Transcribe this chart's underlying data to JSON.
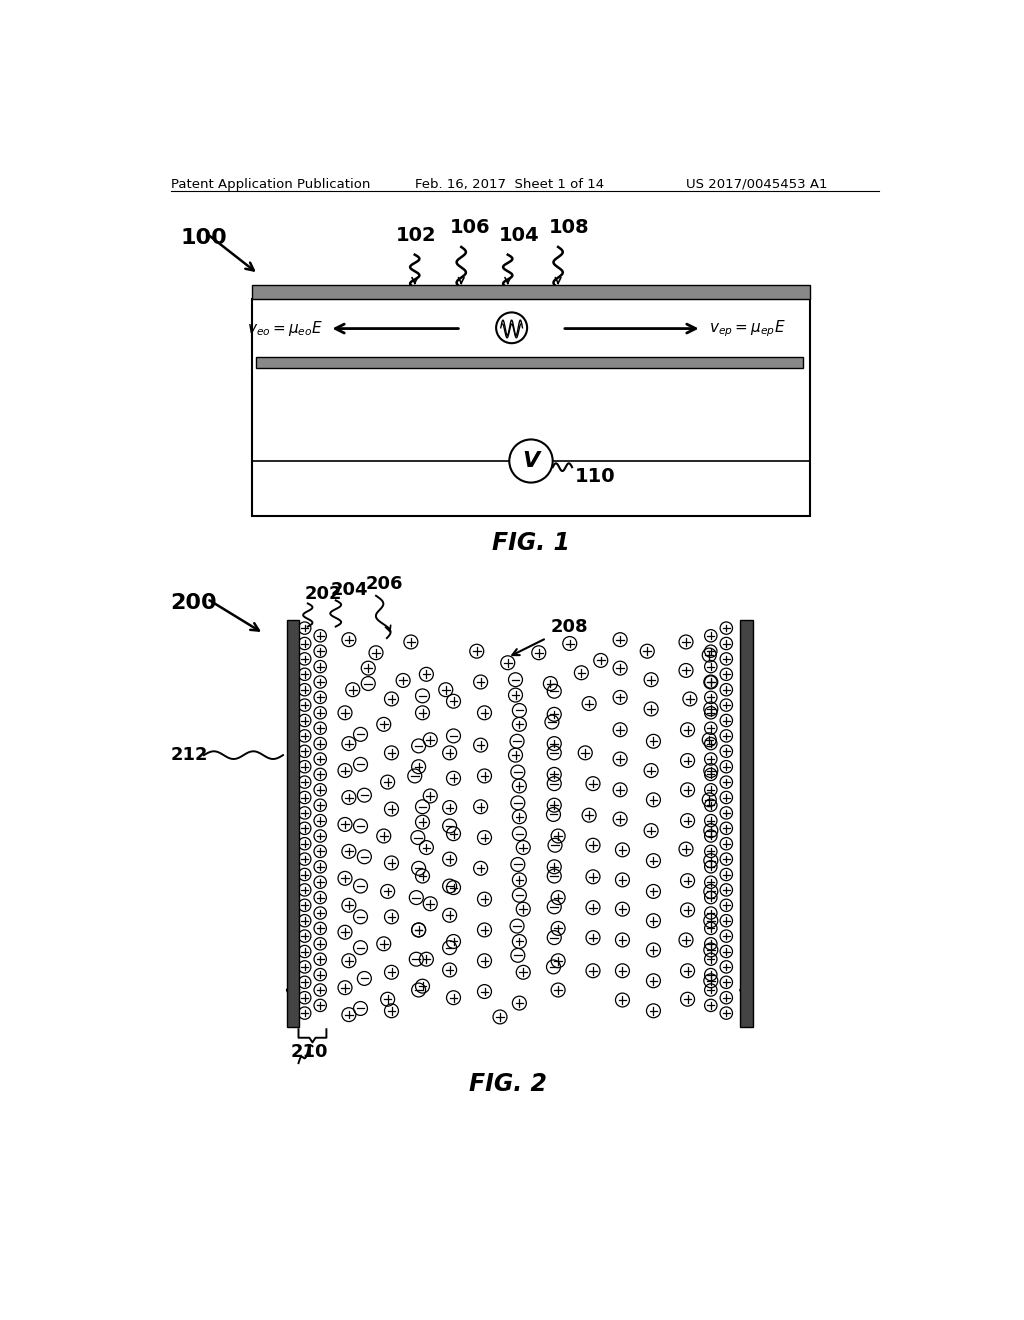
{
  "header_left": "Patent Application Publication",
  "header_mid": "Feb. 16, 2017  Sheet 1 of 14",
  "header_right": "US 2017/0045453 A1",
  "fig1_label": "FIG. 1",
  "fig2_label": "FIG. 2",
  "bg_color": "#ffffff",
  "line_color": "#000000",
  "gray_bar": "#888888",
  "dark_bar": "#444444"
}
